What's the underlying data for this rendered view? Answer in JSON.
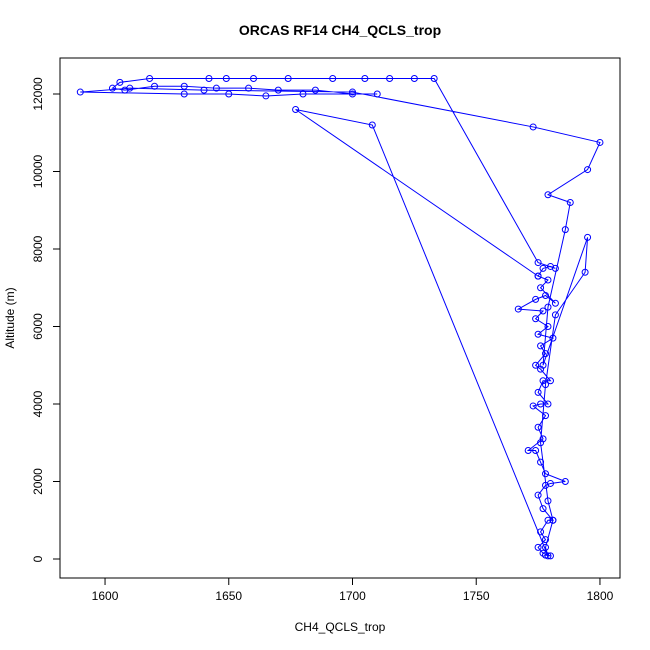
{
  "chart_data": {
    "type": "line",
    "marker": "circle",
    "color": "#0000ff",
    "title": "ORCAS RF14 CH4_QCLS_trop",
    "xlabel": "CH4_QCLS_trop",
    "ylabel": "Altitude (m)",
    "xlim": [
      1581.8,
      1808.1
    ],
    "ylim": [
      -490,
      12929
    ],
    "xticks": [
      1600,
      1650,
      1700,
      1750,
      1800
    ],
    "yticks": [
      0,
      2000,
      4000,
      6000,
      8000,
      10000,
      12000
    ],
    "x": [
      1778,
      1780,
      1777,
      1775,
      1778,
      1776,
      1779,
      1781,
      1777,
      1775,
      1778,
      1780,
      1786,
      1778,
      1776,
      1774,
      1771,
      1777,
      1775,
      1778,
      1773,
      1776,
      1779,
      1775,
      1777,
      1780,
      1776,
      1774,
      1778,
      1776,
      1781,
      1775,
      1779,
      1774,
      1777,
      1767,
      1774,
      1778,
      1782,
      1776,
      1779,
      1775,
      1777,
      1780,
      1782,
      1775,
      1733,
      1725,
      1715,
      1705,
      1692,
      1674,
      1660,
      1649,
      1642,
      1618,
      1606,
      1603,
      1608,
      1620,
      1632,
      1645,
      1658,
      1670,
      1685,
      1700,
      1710,
      1680,
      1665,
      1650,
      1632,
      1590,
      1610,
      1640,
      1700,
      1773,
      1800,
      1795,
      1779,
      1788,
      1786,
      1779,
      1777,
      1795,
      1794,
      1782,
      1778,
      1776,
      1779,
      1781,
      1778,
      1779,
      1708,
      1677,
      1775
    ],
    "values": [
      100,
      80,
      150,
      300,
      500,
      700,
      1000,
      1000,
      1300,
      1650,
      1900,
      1950,
      2000,
      2200,
      2500,
      2800,
      2800,
      3100,
      3400,
      3700,
      3950,
      4000,
      4000,
      4300,
      4600,
      4600,
      4900,
      5000,
      5300,
      5500,
      5700,
      5800,
      6000,
      6200,
      6400,
      6450,
      6700,
      6800,
      6600,
      7000,
      7200,
      7300,
      7500,
      7550,
      7500,
      7650,
      12400,
      12400,
      12400,
      12400,
      12400,
      12400,
      12400,
      12400,
      12400,
      12400,
      12300,
      12150,
      12100,
      12200,
      12200,
      12150,
      12150,
      12100,
      12100,
      12000,
      12000,
      12000,
      11950,
      12000,
      12000,
      12050,
      12150,
      12100,
      12050,
      11150,
      10750,
      10050,
      9400,
      9200,
      8500,
      6500,
      5000,
      8300,
      7400,
      6300,
      4500,
      3000,
      1500,
      1000,
      300,
      80,
      11200,
      11600,
      7300
    ]
  }
}
